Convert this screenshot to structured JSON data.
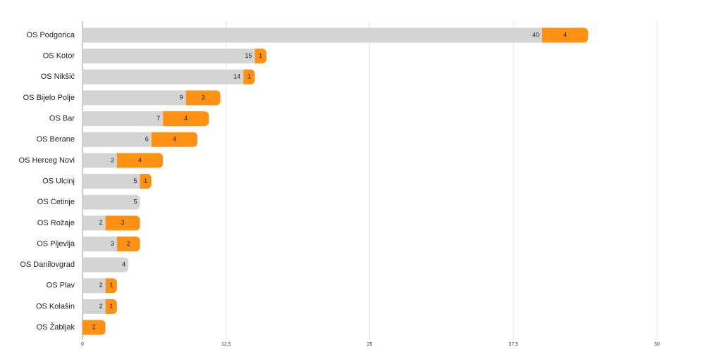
{
  "chart_data": {
    "type": "stacked-bar-horizontal",
    "categories": [
      "OS Podgorica",
      "OS Kotor",
      "OS Nikšić",
      "OS Bijelo Polje",
      "OS Bar",
      "OS Berane",
      "OS Herceg Novi",
      "OS Ulcinj",
      "OS Cetinje",
      "OS Rožaje",
      "OS Pljevlja",
      "OS Danilovgrad",
      "OS Plav",
      "OS Kolašin",
      "OS Žabljak"
    ],
    "series": [
      {
        "color": "#d4d4d4",
        "values": [
          40,
          15,
          14,
          9,
          7,
          6,
          3,
          5,
          5,
          2,
          3,
          4,
          2,
          2,
          null
        ]
      },
      {
        "color": "#ff9214",
        "values": [
          4,
          1,
          1,
          3,
          4,
          4,
          4,
          1,
          null,
          3,
          2,
          null,
          1,
          1,
          2
        ]
      }
    ],
    "xlim": [
      0,
      50
    ],
    "xticks": [
      0,
      {
        "value": 12.5,
        "label": "12,5"
      },
      25,
      {
        "value": 37.5,
        "label": "37,5"
      },
      50
    ],
    "grid": true
  }
}
